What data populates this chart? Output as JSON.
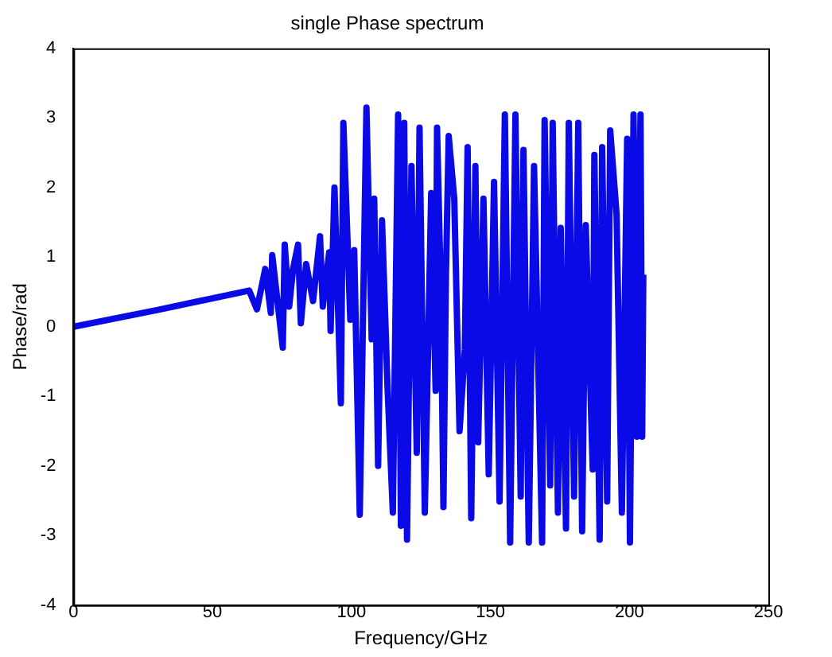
{
  "chart_data": {
    "type": "line",
    "title": "single Phase spectrum",
    "xlabel": "Frequency/GHz",
    "ylabel": "Phase/rad",
    "xlim": [
      0,
      250
    ],
    "xticks": [
      0,
      50,
      100,
      150,
      200,
      250
    ],
    "ylim": [
      -4,
      4
    ],
    "yticks": [
      -4,
      -3,
      -2,
      -1,
      0,
      1,
      2,
      3,
      4
    ],
    "grid": false,
    "legend": false,
    "marker": "none",
    "line_style": "solid",
    "series": [
      {
        "color": "#0a0ae6",
        "x": [
          0,
          30,
          63.2,
          66,
          69,
          71,
          71.5,
          75.3,
          76,
          77.6,
          79,
          80.8,
          81.8,
          83.7,
          86.2,
          88.7,
          89.7,
          92,
          92.5,
          93.9,
          96.2,
          97.1,
          99.6,
          101,
          103,
          105.4,
          107.3,
          108.2,
          109.6,
          111,
          113,
          114.9,
          116.8,
          117.8,
          119,
          120,
          121.6,
          123.5,
          124.5,
          126.4,
          128.7,
          130.3,
          130.8,
          132.2,
          133.1,
          134,
          135,
          137,
          138.9,
          140.8,
          141.8,
          143.1,
          144.6,
          145.6,
          147.5,
          149.4,
          151.3,
          153.3,
          155.2,
          157.1,
          159,
          160.9,
          161.9,
          163.8,
          165.7,
          168.6,
          169.5,
          171.5,
          172.4,
          174.3,
          175.3,
          177.2,
          178.2,
          180.1,
          181.6,
          183,
          184.3,
          186.8,
          187.4,
          189.3,
          190.2,
          192,
          193.1,
          195.4,
          197.3,
          199.2,
          200.2,
          201.5,
          202.7,
          204,
          204.6,
          205
        ],
        "values": [
          0,
          0.24,
          0.52,
          0.25,
          0.83,
          0.2,
          1.03,
          -0.3,
          1.18,
          0.29,
          0.83,
          1.18,
          0.05,
          0.9,
          0.37,
          1.3,
          0.29,
          1.07,
          -0.06,
          2.0,
          -1.1,
          2.93,
          0.1,
          1.1,
          -2.7,
          3.15,
          -0.18,
          1.84,
          -2.0,
          1.53,
          -0.88,
          -2.67,
          3.05,
          -2.86,
          2.93,
          -3.06,
          2.31,
          -1.81,
          2.86,
          -2.67,
          1.92,
          -0.92,
          2.86,
          0.44,
          -2.59,
          0.75,
          2.74,
          1.84,
          -1.5,
          -0.33,
          2.58,
          -2.75,
          2.31,
          -1.66,
          1.84,
          -2.12,
          2.08,
          -2.51,
          3.05,
          -3.1,
          3.05,
          -2.44,
          2.54,
          -3.1,
          2.31,
          -3.1,
          2.97,
          -2.28,
          2.93,
          -2.67,
          1.42,
          -2.9,
          2.93,
          -2.44,
          2.93,
          -2.94,
          1.46,
          -2.05,
          2.47,
          -3.06,
          2.58,
          -2.51,
          2.82,
          1.61,
          -2.67,
          2.7,
          -3.1,
          3.05,
          -1.58,
          3.05,
          -1.58,
          0.75
        ]
      }
    ]
  }
}
